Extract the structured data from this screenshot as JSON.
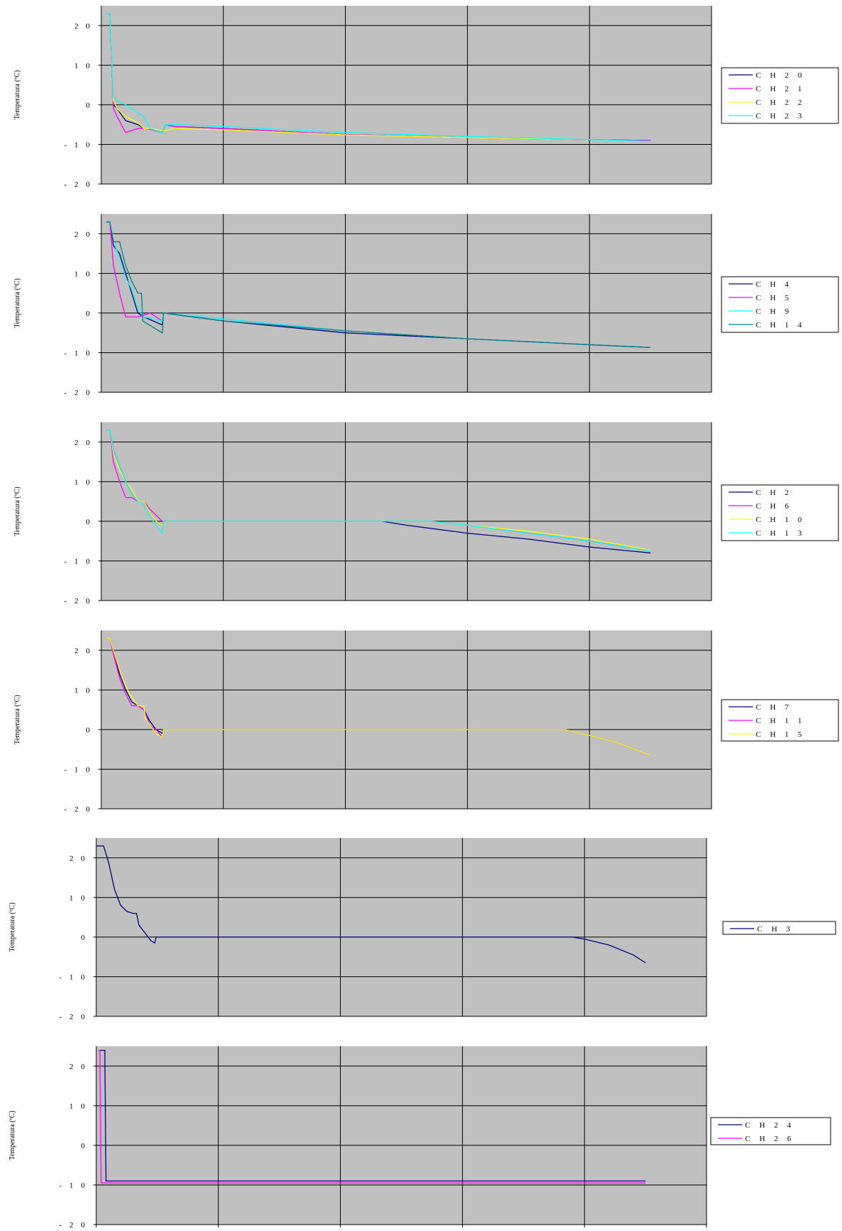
{
  "chart_data": [
    {
      "type": "line",
      "ylabel": "Temperatura (ºC)",
      "xlabel": "",
      "ylim": [
        -20,
        25
      ],
      "yticks": [
        20,
        10,
        0,
        -10,
        -20
      ],
      "xlim": [
        0,
        5
      ],
      "grid": true,
      "legend_position": "right",
      "series": [
        {
          "name": "C H 2 0",
          "color": "#000080",
          "x": [
            0.04,
            0.07,
            0.1,
            0.13,
            0.2,
            0.3,
            0.35,
            0.4,
            0.5,
            0.53,
            0.6,
            1,
            2,
            3,
            4,
            4.5
          ],
          "y": [
            23,
            23,
            0,
            -1,
            -4,
            -5,
            -6,
            -6,
            -7,
            -5,
            -5.5,
            -6,
            -7.5,
            -8.3,
            -8.8,
            -9
          ]
        },
        {
          "name": "C H 2 1",
          "color": "#ff00ff",
          "x": [
            0.04,
            0.07,
            0.1,
            0.13,
            0.2,
            0.25,
            0.3,
            0.35,
            0.4,
            0.5,
            0.53,
            0.6,
            1,
            2,
            3,
            4,
            4.5
          ],
          "y": [
            23,
            23,
            -1,
            -3,
            -7,
            -6.5,
            -6,
            -6,
            -6.2,
            -7,
            -5,
            -5.5,
            -6,
            -7.5,
            -8.3,
            -8.8,
            -9
          ]
        },
        {
          "name": "C H 2 2",
          "color": "#ffff00",
          "x": [
            0.04,
            0.07,
            0.1,
            0.13,
            0.2,
            0.3,
            0.35,
            0.4,
            0.5,
            0.53,
            0.6,
            1,
            2,
            3,
            4,
            4.5
          ],
          "y": [
            23,
            23,
            1,
            -1,
            -3,
            -4.5,
            -6,
            -6,
            -6.5,
            -6.5,
            -6,
            -6.3,
            -7.6,
            -8.3,
            -8.8,
            -9.2
          ]
        },
        {
          "name": "C H 2 3",
          "color": "#00ffff",
          "x": [
            0.04,
            0.07,
            0.1,
            0.13,
            0.2,
            0.3,
            0.35,
            0.4,
            0.5,
            0.53,
            0.6,
            1,
            2,
            3,
            4,
            4.5
          ],
          "y": [
            23,
            23,
            2,
            1,
            0,
            -2,
            -3,
            -6,
            -7,
            -5,
            -5,
            -5.5,
            -7,
            -8,
            -8.8,
            -9.2
          ]
        }
      ]
    },
    {
      "type": "line",
      "ylabel": "Temperatura (ºC)",
      "xlabel": "",
      "ylim": [
        -20,
        25
      ],
      "yticks": [
        20,
        10,
        0,
        -10,
        -20
      ],
      "xlim": [
        0,
        5
      ],
      "grid": true,
      "legend_position": "right",
      "series": [
        {
          "name": "C H 4",
          "color": "#000080",
          "x": [
            0.04,
            0.07,
            0.1,
            0.15,
            0.2,
            0.25,
            0.3,
            0.35,
            0.5,
            0.51,
            1,
            2,
            3,
            4,
            4.5
          ],
          "y": [
            23,
            23,
            17,
            15,
            10,
            5,
            0,
            -1,
            -3,
            0,
            -2,
            -5,
            -6.5,
            -8,
            -8.7
          ]
        },
        {
          "name": "C H 5",
          "color": "#ff00ff",
          "x": [
            0.04,
            0.07,
            0.1,
            0.15,
            0.2,
            0.3,
            0.4,
            0.5,
            0.51,
            1,
            2,
            3,
            4,
            4.5
          ],
          "y": [
            23,
            23,
            12,
            5,
            -1,
            -1,
            0,
            -2,
            0,
            -1.5,
            -4.5,
            -6.5,
            -8,
            -8.7
          ]
        },
        {
          "name": "C H 9",
          "color": "#00ffff",
          "x": [
            0.04,
            0.07,
            0.1,
            0.15,
            0.2,
            0.25,
            0.3,
            0.35,
            0.5,
            0.51,
            1,
            2,
            3,
            4,
            4.5
          ],
          "y": [
            23,
            23,
            18,
            14,
            9,
            6,
            1,
            -1,
            -2,
            0,
            -1.5,
            -4.5,
            -6.5,
            -8,
            -8.7
          ]
        },
        {
          "name": "C H 1 4",
          "color": "#008080",
          "x": [
            0.04,
            0.07,
            0.1,
            0.15,
            0.2,
            0.25,
            0.3,
            0.33,
            0.34,
            0.5,
            0.51,
            1,
            2,
            3,
            4,
            4.5
          ],
          "y": [
            23,
            23,
            18,
            18,
            12,
            8,
            5,
            5,
            -2,
            -5,
            0,
            -2,
            -4.5,
            -6.5,
            -8,
            -8.7
          ]
        }
      ]
    },
    {
      "type": "line",
      "ylabel": "Temperatura (ºC)",
      "xlabel": "",
      "ylim": [
        -20,
        25
      ],
      "yticks": [
        20,
        10,
        0,
        -10,
        -20
      ],
      "xlim": [
        0,
        5
      ],
      "grid": true,
      "legend_position": "right",
      "series": [
        {
          "name": "C H 2",
          "color": "#000080",
          "x": [
            0.04,
            0.07,
            0.1,
            0.15,
            0.2,
            0.25,
            0.3,
            0.35,
            0.4,
            0.45,
            0.5,
            0.51,
            1,
            2,
            2.3,
            2.5,
            3,
            3.5,
            4,
            4.5
          ],
          "y": [
            23,
            23,
            18,
            14,
            10,
            7,
            5,
            5,
            2,
            0,
            -1,
            0,
            0,
            0,
            0,
            -1,
            -3,
            -4.5,
            -6.5,
            -8
          ]
        },
        {
          "name": "C H 6",
          "color": "#ff00ff",
          "x": [
            0.04,
            0.07,
            0.1,
            0.15,
            0.2,
            0.25,
            0.3,
            0.35,
            0.4,
            0.5,
            0.51,
            1,
            2,
            2.5,
            2.7,
            3,
            3.5,
            4,
            4.5
          ],
          "y": [
            23,
            23,
            15,
            10,
            6,
            6,
            5,
            5,
            3,
            0,
            0,
            0,
            0,
            0,
            0,
            -1,
            -3,
            -5,
            -7.5
          ]
        },
        {
          "name": "C H 1 0",
          "color": "#ffff00",
          "x": [
            0.04,
            0.07,
            0.1,
            0.15,
            0.2,
            0.25,
            0.3,
            0.35,
            0.4,
            0.45,
            0.5,
            0.51,
            1,
            2,
            2.5,
            2.7,
            3,
            3.5,
            4,
            4.5
          ],
          "y": [
            23,
            23,
            17,
            13,
            10,
            8,
            5,
            5,
            2,
            0,
            -1,
            0,
            0,
            0,
            0,
            0,
            -1,
            -2.5,
            -4.5,
            -7.3
          ]
        },
        {
          "name": "C H 1 3",
          "color": "#00ffff",
          "x": [
            0.04,
            0.07,
            0.1,
            0.15,
            0.2,
            0.25,
            0.3,
            0.35,
            0.4,
            0.45,
            0.5,
            0.51,
            1,
            2,
            2.5,
            2.7,
            3,
            3.5,
            4,
            4.5
          ],
          "y": [
            23,
            23,
            18,
            14,
            10,
            7,
            5,
            4,
            1,
            -1,
            -3,
            0,
            0,
            0,
            0,
            0,
            -1,
            -3,
            -5,
            -7.5
          ]
        }
      ]
    },
    {
      "type": "line",
      "ylabel": "Temperatura (ºC)",
      "xlabel": "",
      "ylim": [
        -20,
        25
      ],
      "yticks": [
        20,
        10,
        0,
        -10,
        -20
      ],
      "xlim": [
        0,
        5
      ],
      "grid": true,
      "legend_position": "right",
      "series": [
        {
          "name": "C H 7",
          "color": "#000080",
          "x": [
            0.04,
            0.07,
            0.1,
            0.15,
            0.2,
            0.25,
            0.3,
            0.35,
            0.4,
            0.45,
            0.5,
            0.51,
            1,
            2,
            3,
            3.8,
            4,
            4.2,
            4.5
          ],
          "y": [
            23,
            23,
            20,
            14,
            10,
            7,
            6,
            5,
            2,
            0,
            -1,
            0,
            0,
            0,
            0,
            0,
            -1.5,
            -3,
            -6.5
          ]
        },
        {
          "name": "C H 1 1",
          "color": "#ff00ff",
          "x": [
            0.04,
            0.07,
            0.1,
            0.15,
            0.2,
            0.25,
            0.3,
            0.35,
            0.4,
            0.45,
            0.5,
            0.51,
            1,
            2,
            3,
            3.8,
            4,
            4.2,
            4.5
          ],
          "y": [
            23,
            23,
            19,
            13,
            9,
            6,
            6,
            5,
            1,
            0,
            -2,
            0,
            0,
            0,
            0,
            0,
            -1.5,
            -3,
            -6.5
          ]
        },
        {
          "name": "C H 1 5",
          "color": "#ffff00",
          "x": [
            0.04,
            0.07,
            0.1,
            0.15,
            0.2,
            0.25,
            0.3,
            0.35,
            0.36,
            0.4,
            0.45,
            0.5,
            0.51,
            1,
            2,
            3,
            3.8,
            4,
            4.2,
            4.5
          ],
          "y": [
            23,
            23,
            20,
            15,
            11,
            8,
            6,
            6,
            3,
            1,
            -1,
            -2,
            0,
            0,
            0,
            0,
            0,
            -1.5,
            -3,
            -6.5
          ]
        }
      ]
    },
    {
      "type": "line",
      "ylabel": "Temperatura (ºC)",
      "xlabel": "",
      "ylim": [
        -20,
        25
      ],
      "yticks": [
        20,
        10,
        0,
        -10,
        -20
      ],
      "xlim": [
        0,
        5
      ],
      "grid": true,
      "legend_position": "right",
      "series": [
        {
          "name": "C H 3",
          "color": "#000080",
          "x": [
            0,
            0.06,
            0.1,
            0.15,
            0.2,
            0.25,
            0.3,
            0.33,
            0.35,
            0.4,
            0.45,
            0.48,
            0.49,
            1,
            2,
            3,
            3.9,
            4,
            4.2,
            4.4,
            4.5
          ],
          "y": [
            23,
            23,
            19,
            12,
            8,
            6.5,
            6,
            6,
            3,
            1,
            -1,
            -1.5,
            0,
            0,
            0,
            0,
            0,
            -0.5,
            -2,
            -4.5,
            -6.5
          ]
        }
      ]
    },
    {
      "type": "line",
      "ylabel": "Temperatura (ºC)",
      "xlabel": "",
      "ylim": [
        -20,
        25
      ],
      "yticks": [
        20,
        10,
        0,
        -10,
        -20
      ],
      "xlim": [
        0,
        5
      ],
      "xticks": [
        0,
        1,
        2,
        3,
        4,
        5
      ],
      "grid": true,
      "legend_position": "right",
      "series": [
        {
          "name": "C H 2 4",
          "color": "#000080",
          "x": [
            0.02,
            0.03,
            0.07,
            0.08,
            0.1,
            1,
            2,
            3,
            4,
            4.5
          ],
          "y": [
            24,
            24,
            24,
            -9,
            -9,
            -9,
            -9,
            -9,
            -9,
            -9
          ]
        },
        {
          "name": "C H 2 6",
          "color": "#ff00ff",
          "x": [
            0.02,
            0.03,
            0.04,
            0.06,
            1,
            2,
            3,
            4,
            4.5
          ],
          "y": [
            24,
            24,
            -9.5,
            -9.5,
            -9.5,
            -9.5,
            -9.5,
            -9.5,
            -9.5
          ]
        }
      ]
    }
  ]
}
